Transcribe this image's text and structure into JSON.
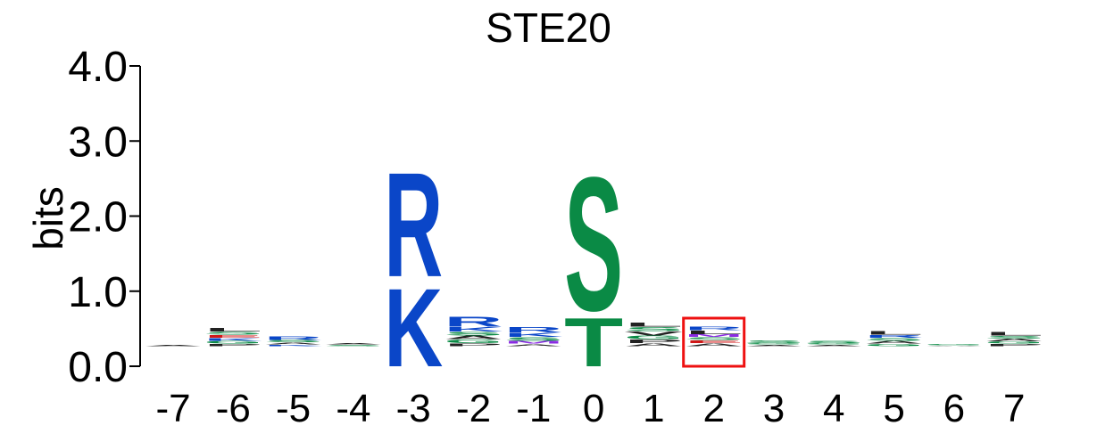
{
  "chart_data": {
    "type": "sequence_logo",
    "title": "STE20",
    "ylabel": "bits",
    "ylim": [
      0,
      4
    ],
    "y_ticks": [
      "0.0",
      "1.0",
      "2.0",
      "3.0",
      "4.0"
    ],
    "positions": [
      "-7",
      "-6",
      "-5",
      "-4",
      "-3",
      "-2",
      "-1",
      "0",
      "1",
      "2",
      "3",
      "4",
      "5",
      "6",
      "7"
    ],
    "highlight_position": "2",
    "colors": {
      "basic": "#0a46c8",
      "polar": "#0a8a45",
      "hydrophobic": "#222222",
      "acidic": "#d01818",
      "other": "#8a2be2",
      "highlight": "#ee1111"
    },
    "stacks": [
      {
        "pos": "-7",
        "letters": [
          {
            "aa": "A",
            "h": 0.02,
            "c": "hydrophobic"
          }
        ]
      },
      {
        "pos": "-6",
        "letters": [
          {
            "aa": "L",
            "h": 0.05,
            "c": "hydrophobic"
          },
          {
            "aa": "S",
            "h": 0.04,
            "c": "polar"
          },
          {
            "aa": "E",
            "h": 0.04,
            "c": "acidic"
          },
          {
            "aa": "K",
            "h": 0.04,
            "c": "basic"
          },
          {
            "aa": "G",
            "h": 0.04,
            "c": "polar"
          },
          {
            "aa": "P",
            "h": 0.03,
            "c": "hydrophobic"
          }
        ]
      },
      {
        "pos": "-5",
        "letters": [
          {
            "aa": "R",
            "h": 0.05,
            "c": "basic"
          },
          {
            "aa": "S",
            "h": 0.03,
            "c": "polar"
          },
          {
            "aa": "A",
            "h": 0.03,
            "c": "hydrophobic"
          },
          {
            "aa": "K",
            "h": 0.02,
            "c": "basic"
          }
        ]
      },
      {
        "pos": "-4",
        "letters": [
          {
            "aa": "A",
            "h": 0.02,
            "c": "hydrophobic"
          },
          {
            "aa": "S",
            "h": 0.02,
            "c": "polar"
          }
        ]
      },
      {
        "pos": "-3",
        "letters": [
          {
            "aa": "R",
            "h": 1.6,
            "c": "basic"
          },
          {
            "aa": "K",
            "h": 1.2,
            "c": "basic"
          }
        ]
      },
      {
        "pos": "-2",
        "letters": [
          {
            "aa": "R",
            "h": 0.15,
            "c": "basic"
          },
          {
            "aa": "K",
            "h": 0.07,
            "c": "basic"
          },
          {
            "aa": "S",
            "h": 0.05,
            "c": "polar"
          },
          {
            "aa": "A",
            "h": 0.05,
            "c": "hydrophobic"
          },
          {
            "aa": "G",
            "h": 0.05,
            "c": "polar"
          },
          {
            "aa": "P",
            "h": 0.04,
            "c": "hydrophobic"
          }
        ]
      },
      {
        "pos": "-1",
        "letters": [
          {
            "aa": "R",
            "h": 0.08,
            "c": "basic"
          },
          {
            "aa": "K",
            "h": 0.06,
            "c": "basic"
          },
          {
            "aa": "S",
            "h": 0.05,
            "c": "polar"
          },
          {
            "aa": "M",
            "h": 0.04,
            "c": "other"
          },
          {
            "aa": "A",
            "h": 0.03,
            "c": "hydrophobic"
          }
        ]
      },
      {
        "pos": "0",
        "letters": [
          {
            "aa": "S",
            "h": 2.05,
            "c": "polar"
          },
          {
            "aa": "T",
            "h": 0.75,
            "c": "polar"
          }
        ]
      },
      {
        "pos": "1",
        "letters": [
          {
            "aa": "L",
            "h": 0.06,
            "c": "hydrophobic"
          },
          {
            "aa": "S",
            "h": 0.06,
            "c": "polar"
          },
          {
            "aa": "V",
            "h": 0.06,
            "c": "hydrophobic"
          },
          {
            "aa": "G",
            "h": 0.05,
            "c": "polar"
          },
          {
            "aa": "P",
            "h": 0.05,
            "c": "hydrophobic"
          },
          {
            "aa": "A",
            "h": 0.04,
            "c": "hydrophobic"
          }
        ]
      },
      {
        "pos": "2",
        "letters": [
          {
            "aa": "R",
            "h": 0.05,
            "c": "basic"
          },
          {
            "aa": "L",
            "h": 0.05,
            "c": "hydrophobic"
          },
          {
            "aa": "M",
            "h": 0.04,
            "c": "other"
          },
          {
            "aa": "S",
            "h": 0.04,
            "c": "polar"
          },
          {
            "aa": "E",
            "h": 0.04,
            "c": "acidic"
          },
          {
            "aa": "A",
            "h": 0.04,
            "c": "hydrophobic"
          }
        ]
      },
      {
        "pos": "3",
        "letters": [
          {
            "aa": "S",
            "h": 0.04,
            "c": "polar"
          },
          {
            "aa": "G",
            "h": 0.02,
            "c": "polar"
          },
          {
            "aa": "A",
            "h": 0.02,
            "c": "hydrophobic"
          }
        ]
      },
      {
        "pos": "4",
        "letters": [
          {
            "aa": "S",
            "h": 0.03,
            "c": "polar"
          },
          {
            "aa": "G",
            "h": 0.02,
            "c": "polar"
          },
          {
            "aa": "A",
            "h": 0.02,
            "c": "hydrophobic"
          }
        ]
      },
      {
        "pos": "5",
        "letters": [
          {
            "aa": "L",
            "h": 0.05,
            "c": "hydrophobic"
          },
          {
            "aa": "R",
            "h": 0.04,
            "c": "basic"
          },
          {
            "aa": "S",
            "h": 0.04,
            "c": "polar"
          },
          {
            "aa": "A",
            "h": 0.04,
            "c": "hydrophobic"
          },
          {
            "aa": "G",
            "h": 0.03,
            "c": "polar"
          }
        ]
      },
      {
        "pos": "6",
        "letters": [
          {
            "aa": "G",
            "h": 0.02,
            "c": "polar"
          },
          {
            "aa": "A",
            "h": 0.01,
            "c": "hydrophobic"
          }
        ]
      },
      {
        "pos": "7",
        "letters": [
          {
            "aa": "L",
            "h": 0.05,
            "c": "hydrophobic"
          },
          {
            "aa": "S",
            "h": 0.04,
            "c": "polar"
          },
          {
            "aa": "A",
            "h": 0.04,
            "c": "hydrophobic"
          },
          {
            "aa": "G",
            "h": 0.03,
            "c": "polar"
          },
          {
            "aa": "P",
            "h": 0.03,
            "c": "hydrophobic"
          }
        ]
      }
    ]
  }
}
